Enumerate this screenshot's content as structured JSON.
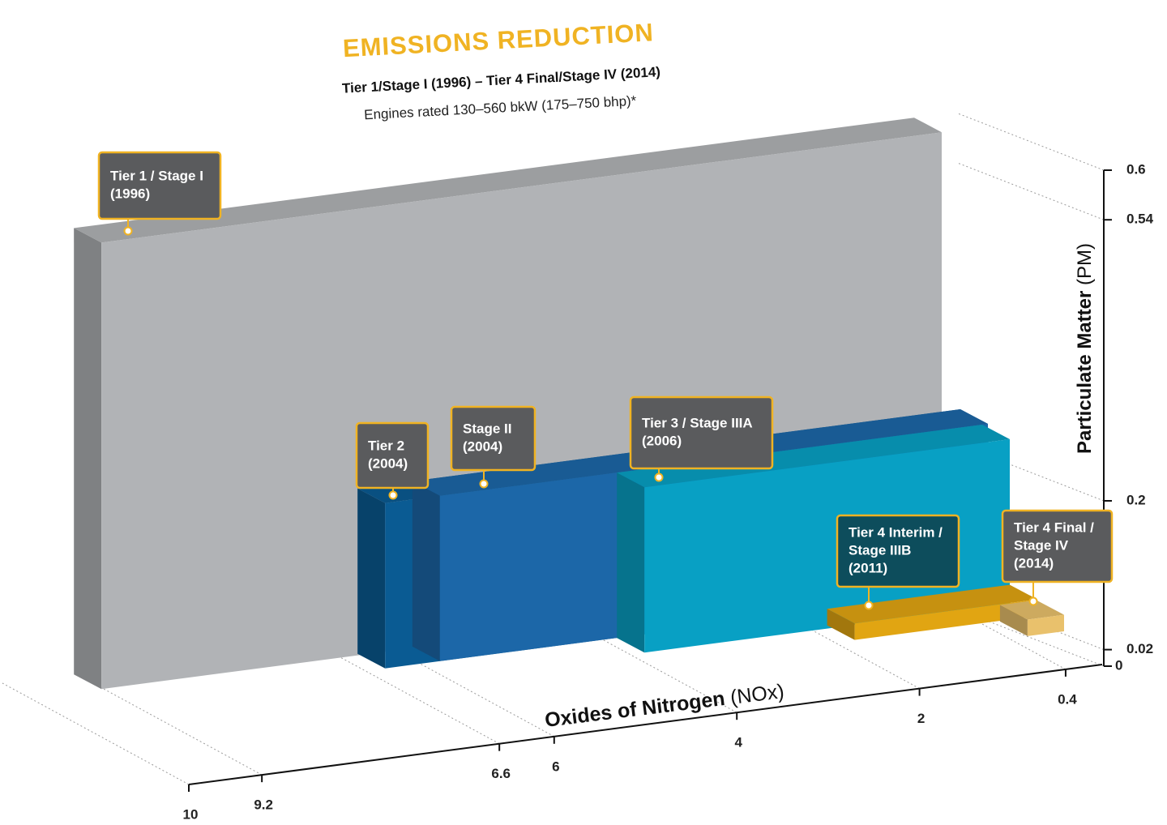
{
  "chart_data": {
    "type": "bar3d",
    "title": "EMISSIONS REDUCTION",
    "subtitle": "Tier 1/Stage I (1996) – Tier 4 Final/Stage IV (2014)",
    "note": "Engines rated 130–560 bkW (175–750 bhp)*",
    "x_label": "Oxides of Nitrogen",
    "x_unit": "(NOx)",
    "y_label": "Particulate Matter",
    "y_unit": "(PM)",
    "categories": [
      [
        "Tier 1 / Stage I",
        "(1996)"
      ],
      [
        "Tier 2",
        "(2004)"
      ],
      [
        "Stage II",
        "(2004)"
      ],
      [
        "Tier 3 / Stage IIIA",
        "(2006)"
      ],
      [
        "Tier 4 Interim /",
        "Stage IIIB",
        "(2011)"
      ],
      [
        "Tier 4 Final /",
        "Stage IV",
        "(2014)"
      ]
    ],
    "x": [
      9.2,
      6.6,
      6,
      4,
      2,
      0.4
    ],
    "values": [
      0.54,
      0.2,
      0.2,
      0.2,
      0.02,
      0.02
    ],
    "colors": [
      "#b1b3b6",
      "#0a5b93",
      "#1c67a8",
      "#08a0c4",
      "#e1a512",
      "#e9c16c"
    ],
    "xlim": [
      10,
      0
    ],
    "xticks": [
      10,
      9.2,
      6.6,
      6,
      4,
      2,
      0.4
    ],
    "ylim": [
      0,
      0.6
    ],
    "yticks": [
      0,
      0.02,
      0.2,
      0.54,
      0.6
    ],
    "grid": true
  }
}
